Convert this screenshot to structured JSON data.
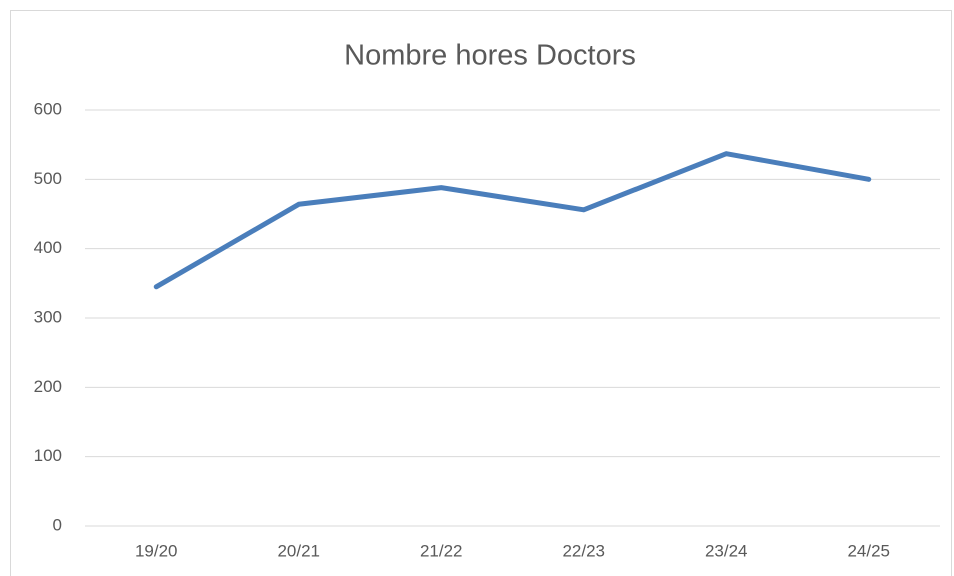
{
  "chart_data": {
    "type": "line",
    "title": "Nombre hores Doctors",
    "categories": [
      "19/20",
      "20/21",
      "21/22",
      "22/23",
      "23/24",
      "24/25"
    ],
    "series": [
      {
        "name": "Nombre hores Doctors",
        "color": "#4a7ebb",
        "values": [
          345,
          464,
          488,
          456,
          537,
          500
        ]
      }
    ],
    "ylim": [
      0,
      600
    ],
    "yticks": [
      0,
      100,
      200,
      300,
      400,
      500,
      600
    ],
    "grid": true
  }
}
